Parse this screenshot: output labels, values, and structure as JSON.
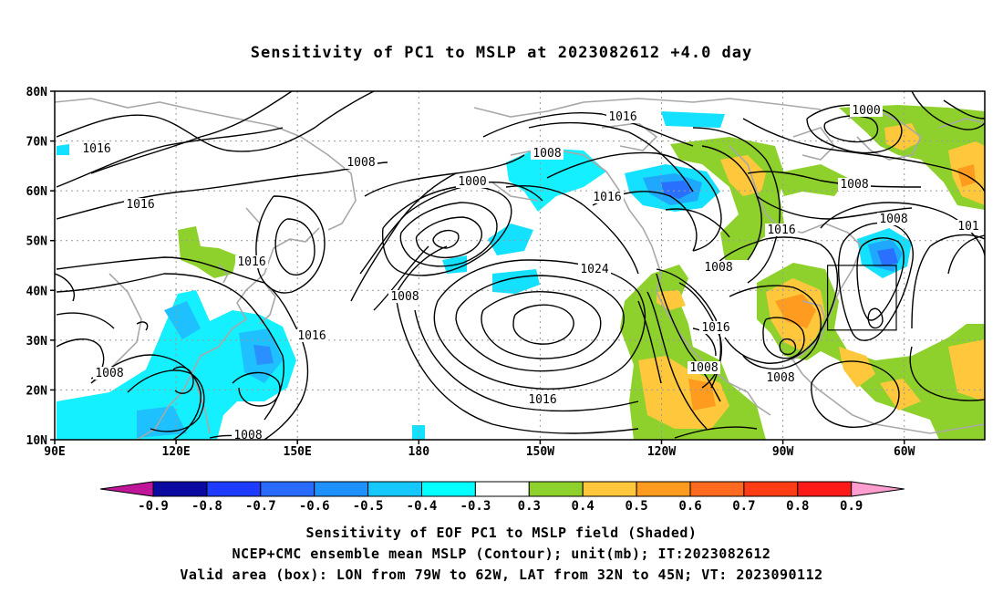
{
  "title": "Sensitivity of PC1 to MSLP at 2023082612 +4.0 day",
  "map": {
    "lat_labels": [
      "80N",
      "70N",
      "60N",
      "50N",
      "40N",
      "30N",
      "20N",
      "10N"
    ],
    "lon_labels": [
      "90E",
      "120E",
      "150E",
      "180",
      "150W",
      "120W",
      "90W",
      "60W"
    ],
    "contour_labels": [
      "1016",
      "1016",
      "1016",
      "1016",
      "1008",
      "1000",
      "1008",
      "1024",
      "1016",
      "1016",
      "1008",
      "1000",
      "1008",
      "1016",
      "1008",
      "1016",
      "1008",
      "1008",
      "1008",
      "1016",
      "1008",
      "101",
      "1008"
    ],
    "valid_box": {
      "lon_from": "79W",
      "lon_to": "62W",
      "lat_from": "32N",
      "lat_to": "45N"
    }
  },
  "colorbar": {
    "labels": [
      "-0.9",
      "-0.8",
      "-0.7",
      "-0.6",
      "-0.5",
      "-0.4",
      "-0.3",
      "0.3",
      "0.4",
      "0.5",
      "0.6",
      "0.7",
      "0.8",
      "0.9"
    ],
    "colors": [
      "#0a0aa0",
      "#1e3cff",
      "#2a6bff",
      "#1e90ff",
      "#14c8ff",
      "#00ffff",
      "#ffffff",
      "#8fd12c",
      "#ffc83c",
      "#ff9b1e",
      "#ff6a1e",
      "#ff3c14",
      "#ff1a1a"
    ],
    "left_tip_color": "#c0179a",
    "right_tip_color": "#ff9ecf"
  },
  "captions": [
    "Sensitivity of EOF PC1 to MSLP field (Shaded)",
    "NCEP+CMC ensemble mean MSLP (Contour); unit(mb); IT:2023082612",
    "Valid area (box): LON from 79W to 62W, LAT from 32N to 45N; VT: 2023090112"
  ]
}
